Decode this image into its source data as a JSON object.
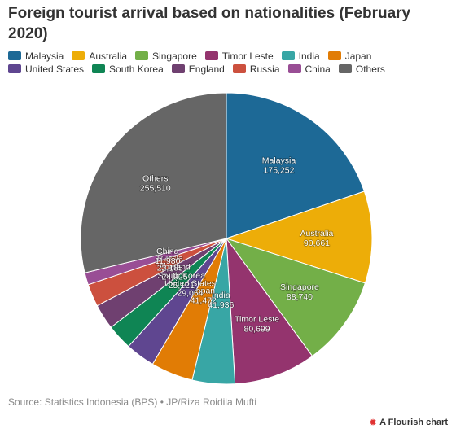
{
  "title": "Foreign tourist arrival based on nationalities (February 2020)",
  "source": "Source: Statistics Indonesia (BPS) • JP/Riza Roidila Mufti",
  "brand": "A Flourish chart",
  "chart_data": {
    "type": "pie",
    "categories": [
      "Malaysia",
      "Australia",
      "Singapore",
      "Timor Leste",
      "India",
      "Japan",
      "United States",
      "South Korea",
      "England",
      "Russia",
      "China",
      "Others"
    ],
    "values": [
      175252,
      90661,
      88740,
      80699,
      41936,
      41472,
      29054,
      25121,
      24925,
      22185,
      11980,
      255510
    ],
    "labels": [
      "Malaysia\n175,252",
      "Australia\n90,661",
      "Singapore\n88,740",
      "Timor Leste\n80,699",
      "India\n41,936",
      "Japan\n41,472",
      "United States\n29,054",
      "South Korea\n25,121",
      "England\n24,925",
      "Russia\n22,185",
      "China\n11,980",
      "Others\n255,510"
    ],
    "colors": [
      "#1d6996",
      "#edad08",
      "#73af48",
      "#94346e",
      "#38a6a5",
      "#e17c05",
      "#5f4690",
      "#0f8554",
      "#6f4070",
      "#cc503e",
      "#994e95",
      "#666666"
    ],
    "legend_position": "top"
  }
}
